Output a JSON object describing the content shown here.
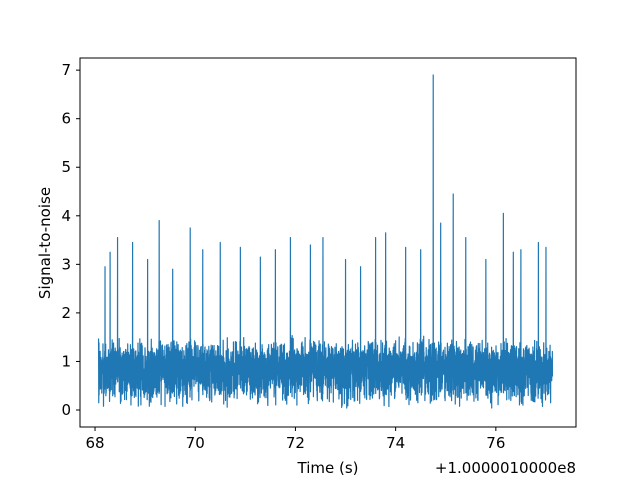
{
  "chart_data": {
    "type": "line",
    "xlabel": "Time (s)",
    "ylabel": "Signal-to-noise",
    "x_offset_label": "+1.0000010000e8",
    "xlim": [
      67.7,
      77.6
    ],
    "ylim": [
      -0.35,
      7.25
    ],
    "xticks": [
      68,
      70,
      72,
      74,
      76
    ],
    "yticks": [
      0,
      1,
      2,
      3,
      4,
      5,
      6,
      7
    ],
    "grid": false,
    "line_color": "#1f77b4",
    "series": [
      {
        "x_range": [
          68.07,
          77.13
        ],
        "typical_range": [
          0.1,
          2.5
        ],
        "peaks": [
          {
            "x": 68.2,
            "y": 2.95
          },
          {
            "x": 68.3,
            "y": 3.25
          },
          {
            "x": 68.45,
            "y": 3.55
          },
          {
            "x": 68.75,
            "y": 3.45
          },
          {
            "x": 69.05,
            "y": 3.1
          },
          {
            "x": 69.28,
            "y": 3.9
          },
          {
            "x": 69.55,
            "y": 2.9
          },
          {
            "x": 69.9,
            "y": 3.75
          },
          {
            "x": 70.15,
            "y": 3.3
          },
          {
            "x": 70.5,
            "y": 3.45
          },
          {
            "x": 70.9,
            "y": 3.35
          },
          {
            "x": 71.3,
            "y": 3.15
          },
          {
            "x": 71.6,
            "y": 3.3
          },
          {
            "x": 71.9,
            "y": 3.55
          },
          {
            "x": 72.3,
            "y": 3.4
          },
          {
            "x": 72.55,
            "y": 3.55
          },
          {
            "x": 73.0,
            "y": 3.1
          },
          {
            "x": 73.3,
            "y": 2.95
          },
          {
            "x": 73.6,
            "y": 3.55
          },
          {
            "x": 73.8,
            "y": 3.65
          },
          {
            "x": 74.2,
            "y": 3.35
          },
          {
            "x": 74.5,
            "y": 3.3
          },
          {
            "x": 74.75,
            "y": 6.9
          },
          {
            "x": 74.9,
            "y": 3.85
          },
          {
            "x": 75.15,
            "y": 4.45
          },
          {
            "x": 75.4,
            "y": 3.55
          },
          {
            "x": 75.8,
            "y": 3.1
          },
          {
            "x": 76.15,
            "y": 4.05
          },
          {
            "x": 76.35,
            "y": 3.25
          },
          {
            "x": 76.5,
            "y": 3.3
          },
          {
            "x": 76.85,
            "y": 3.45
          },
          {
            "x": 77.0,
            "y": 3.35
          }
        ]
      }
    ]
  }
}
